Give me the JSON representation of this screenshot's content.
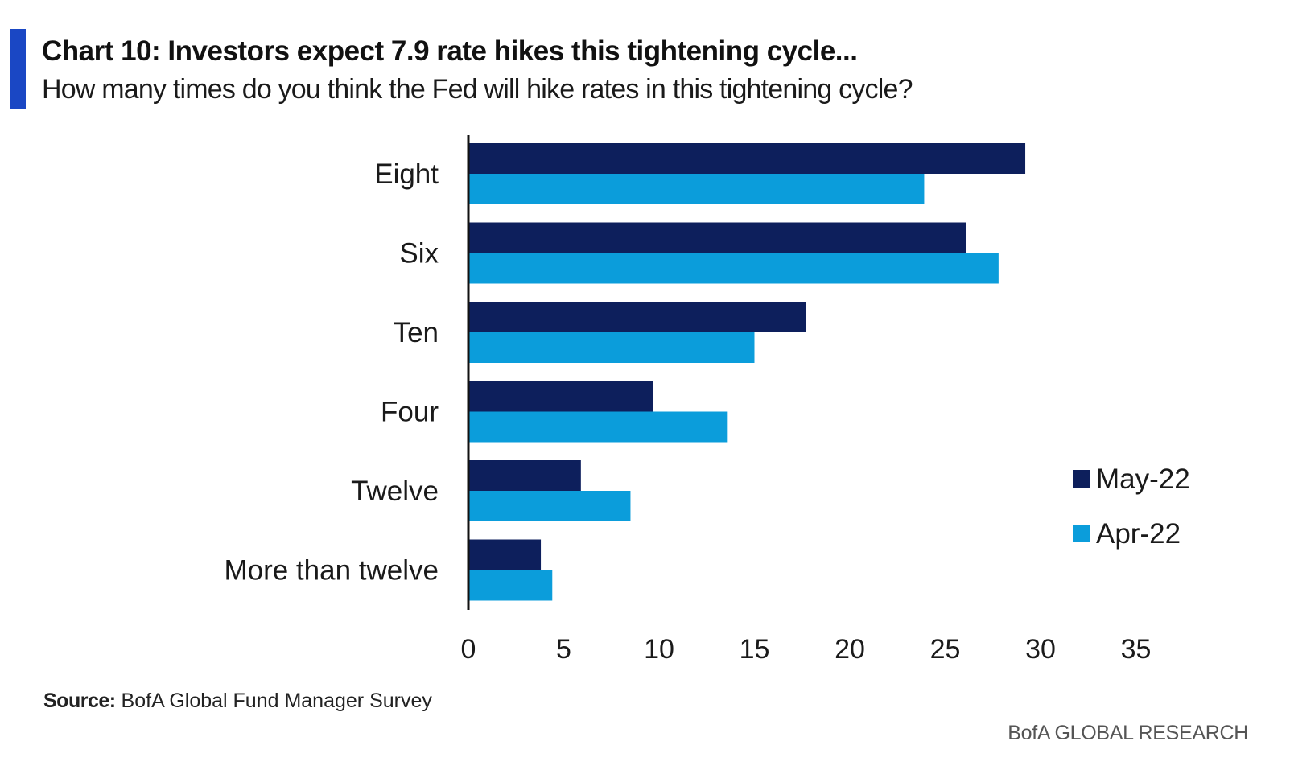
{
  "colors": {
    "accent": "#1a47c4",
    "series_may": "#0d1f5c",
    "series_apr": "#0b9ddb",
    "axis": "#111111",
    "text": "#1a1a1a"
  },
  "header": {
    "title": "Chart 10: Investors expect 7.9 rate hikes this tightening cycle...",
    "subtitle": "How many times do you think the Fed will hike rates in this tightening cycle?"
  },
  "footer": {
    "source_label": "Source:",
    "source_text": "BofA Global Fund Manager Survey",
    "brand": "BofA GLOBAL RESEARCH"
  },
  "chart_data": {
    "type": "bar",
    "orientation": "horizontal",
    "categories": [
      "Eight",
      "Six",
      "Ten",
      "Four",
      "Twelve",
      "More than twelve"
    ],
    "series": [
      {
        "name": "May-22",
        "color": "#0d1f5c",
        "values": [
          29.2,
          26.1,
          17.7,
          9.7,
          5.9,
          3.8
        ]
      },
      {
        "name": "Apr-22",
        "color": "#0b9ddb",
        "values": [
          23.9,
          27.8,
          15.0,
          13.6,
          8.5,
          4.4
        ]
      }
    ],
    "xlim": [
      0,
      35
    ],
    "xticks": [
      "0",
      "5",
      "10",
      "15",
      "20",
      "25",
      "30",
      "35"
    ],
    "grid": false,
    "legend_position": "right"
  }
}
